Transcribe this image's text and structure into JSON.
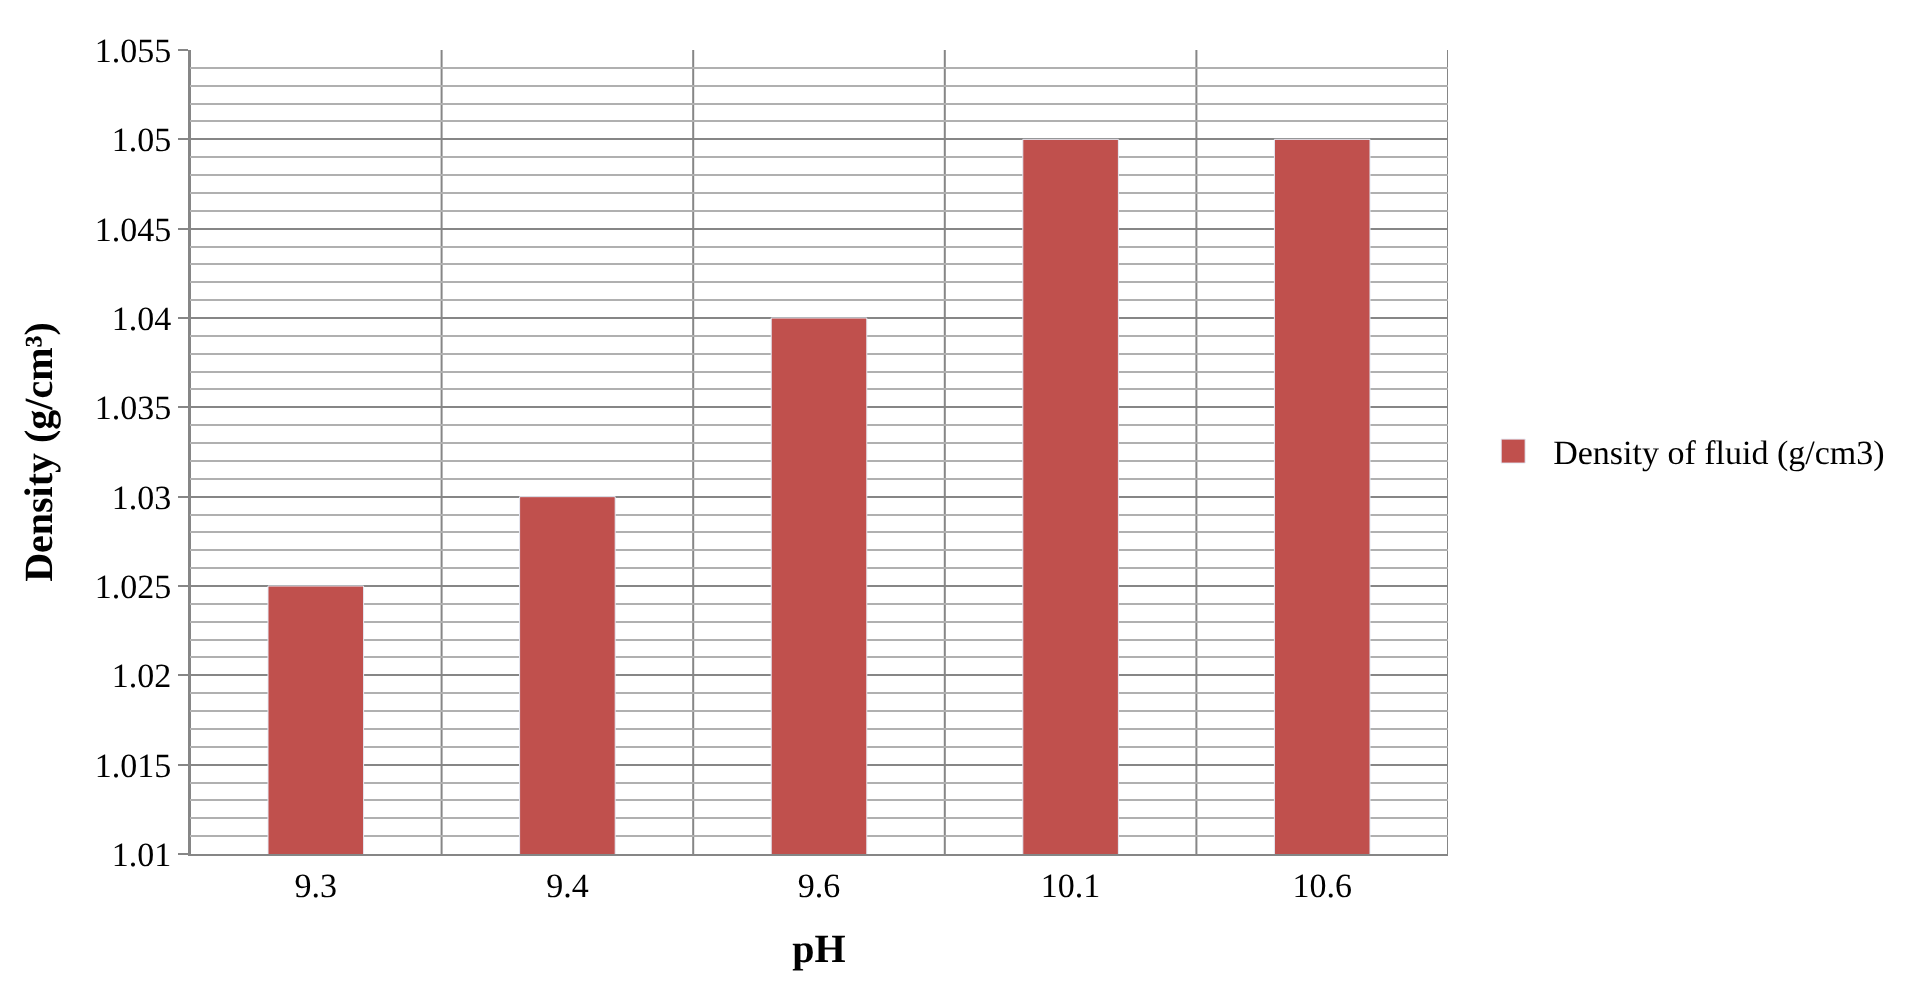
{
  "chart_data": {
    "type": "bar",
    "xlabel": "pH",
    "ylabel": "Density (g/cm³)",
    "categories": [
      "9.3",
      "9.4",
      "9.6",
      "10.1",
      "10.6"
    ],
    "series": [
      {
        "name": "Density of fluid (g/cm3)",
        "color": "#c0504d",
        "values": [
          1.025,
          1.03,
          1.04,
          1.05,
          1.05
        ]
      }
    ],
    "ylim": [
      1.01,
      1.055
    ],
    "yticks": [
      1.01,
      1.015,
      1.02,
      1.025,
      1.03,
      1.035,
      1.04,
      1.045,
      1.05,
      1.055
    ],
    "grid": true,
    "legend": "right"
  }
}
